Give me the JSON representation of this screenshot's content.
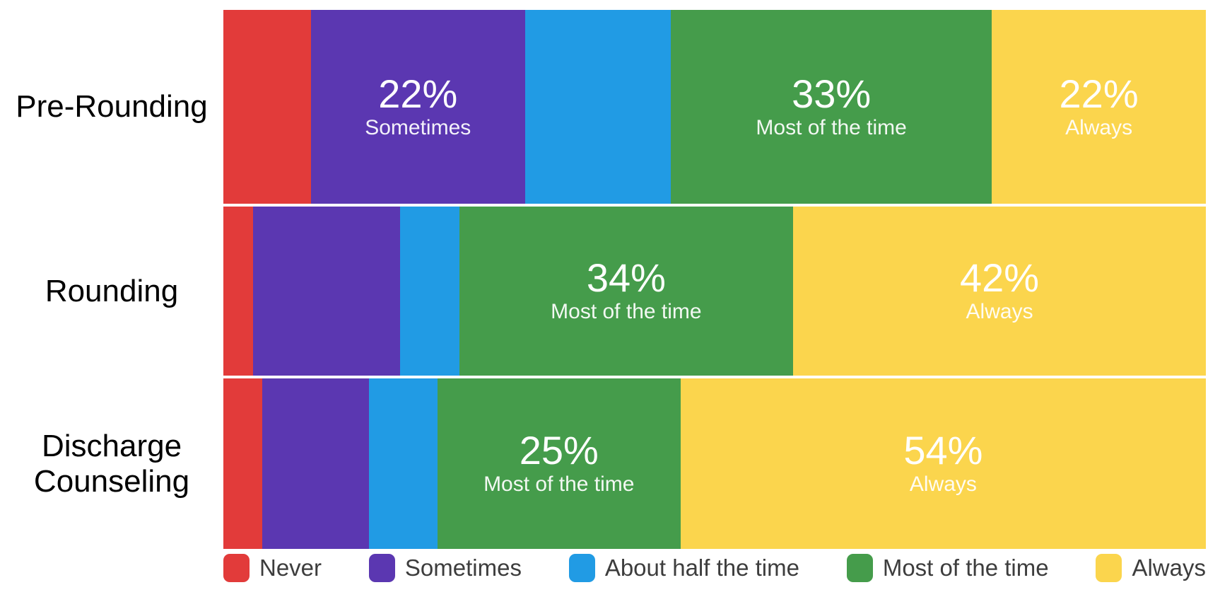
{
  "chart_data": {
    "type": "bar",
    "orientation": "horizontal",
    "stacked": true,
    "stack_unit": "percent",
    "title": "",
    "xlabel": "",
    "ylabel": "",
    "grid": false,
    "legend_position": "bottom",
    "categories": [
      "Pre-Rounding",
      "Rounding",
      "Discharge Counseling"
    ],
    "series": [
      {
        "name": "Never",
        "values": [
          9,
          3,
          4
        ]
      },
      {
        "name": "Sometimes",
        "values": [
          22,
          15,
          11
        ]
      },
      {
        "name": "About half the time",
        "values": [
          15,
          6,
          7
        ]
      },
      {
        "name": "Most of the time",
        "values": [
          33,
          34,
          25
        ]
      },
      {
        "name": "Always",
        "values": [
          22,
          42,
          54
        ]
      }
    ],
    "colors": {
      "Never": "#e23b3a",
      "Sometimes": "#5b37b1",
      "About half the time": "#219be4",
      "Most of the time": "#459c4b",
      "Always": "#fbd54d"
    },
    "rows": [
      {
        "category": "Pre-Rounding",
        "segments": [
          {
            "series": "Never",
            "value": 9
          },
          {
            "series": "Sometimes",
            "value": 22,
            "pct_label": "22%",
            "series_label": "Sometimes"
          },
          {
            "series": "About half the time",
            "value": 15
          },
          {
            "series": "Most of the time",
            "value": 33,
            "pct_label": "33%",
            "series_label": "Most of the time"
          },
          {
            "series": "Always",
            "value": 22,
            "pct_label": "22%",
            "series_label": "Always"
          }
        ]
      },
      {
        "category": "Rounding",
        "segments": [
          {
            "series": "Never",
            "value": 3
          },
          {
            "series": "Sometimes",
            "value": 15
          },
          {
            "series": "About half the time",
            "value": 6
          },
          {
            "series": "Most of the time",
            "value": 34,
            "pct_label": "34%",
            "series_label": "Most of the time"
          },
          {
            "series": "Always",
            "value": 42,
            "pct_label": "42%",
            "series_label": "Always"
          }
        ]
      },
      {
        "category": "Discharge Counseling",
        "segments": [
          {
            "series": "Never",
            "value": 4
          },
          {
            "series": "Sometimes",
            "value": 11
          },
          {
            "series": "About half the time",
            "value": 7
          },
          {
            "series": "Most of the time",
            "value": 25,
            "pct_label": "25%",
            "series_label": "Most of the time"
          },
          {
            "series": "Always",
            "value": 54,
            "pct_label": "54%",
            "series_label": "Always"
          }
        ]
      }
    ],
    "legend": {
      "items": [
        {
          "label": "Never",
          "color": "#e23b3a"
        },
        {
          "label": "Sometimes",
          "color": "#5b37b1"
        },
        {
          "label": "About half the time",
          "color": "#219be4"
        },
        {
          "label": "Most of the time",
          "color": "#459c4b"
        },
        {
          "label": "Always",
          "color": "#fbd54d"
        }
      ]
    }
  }
}
